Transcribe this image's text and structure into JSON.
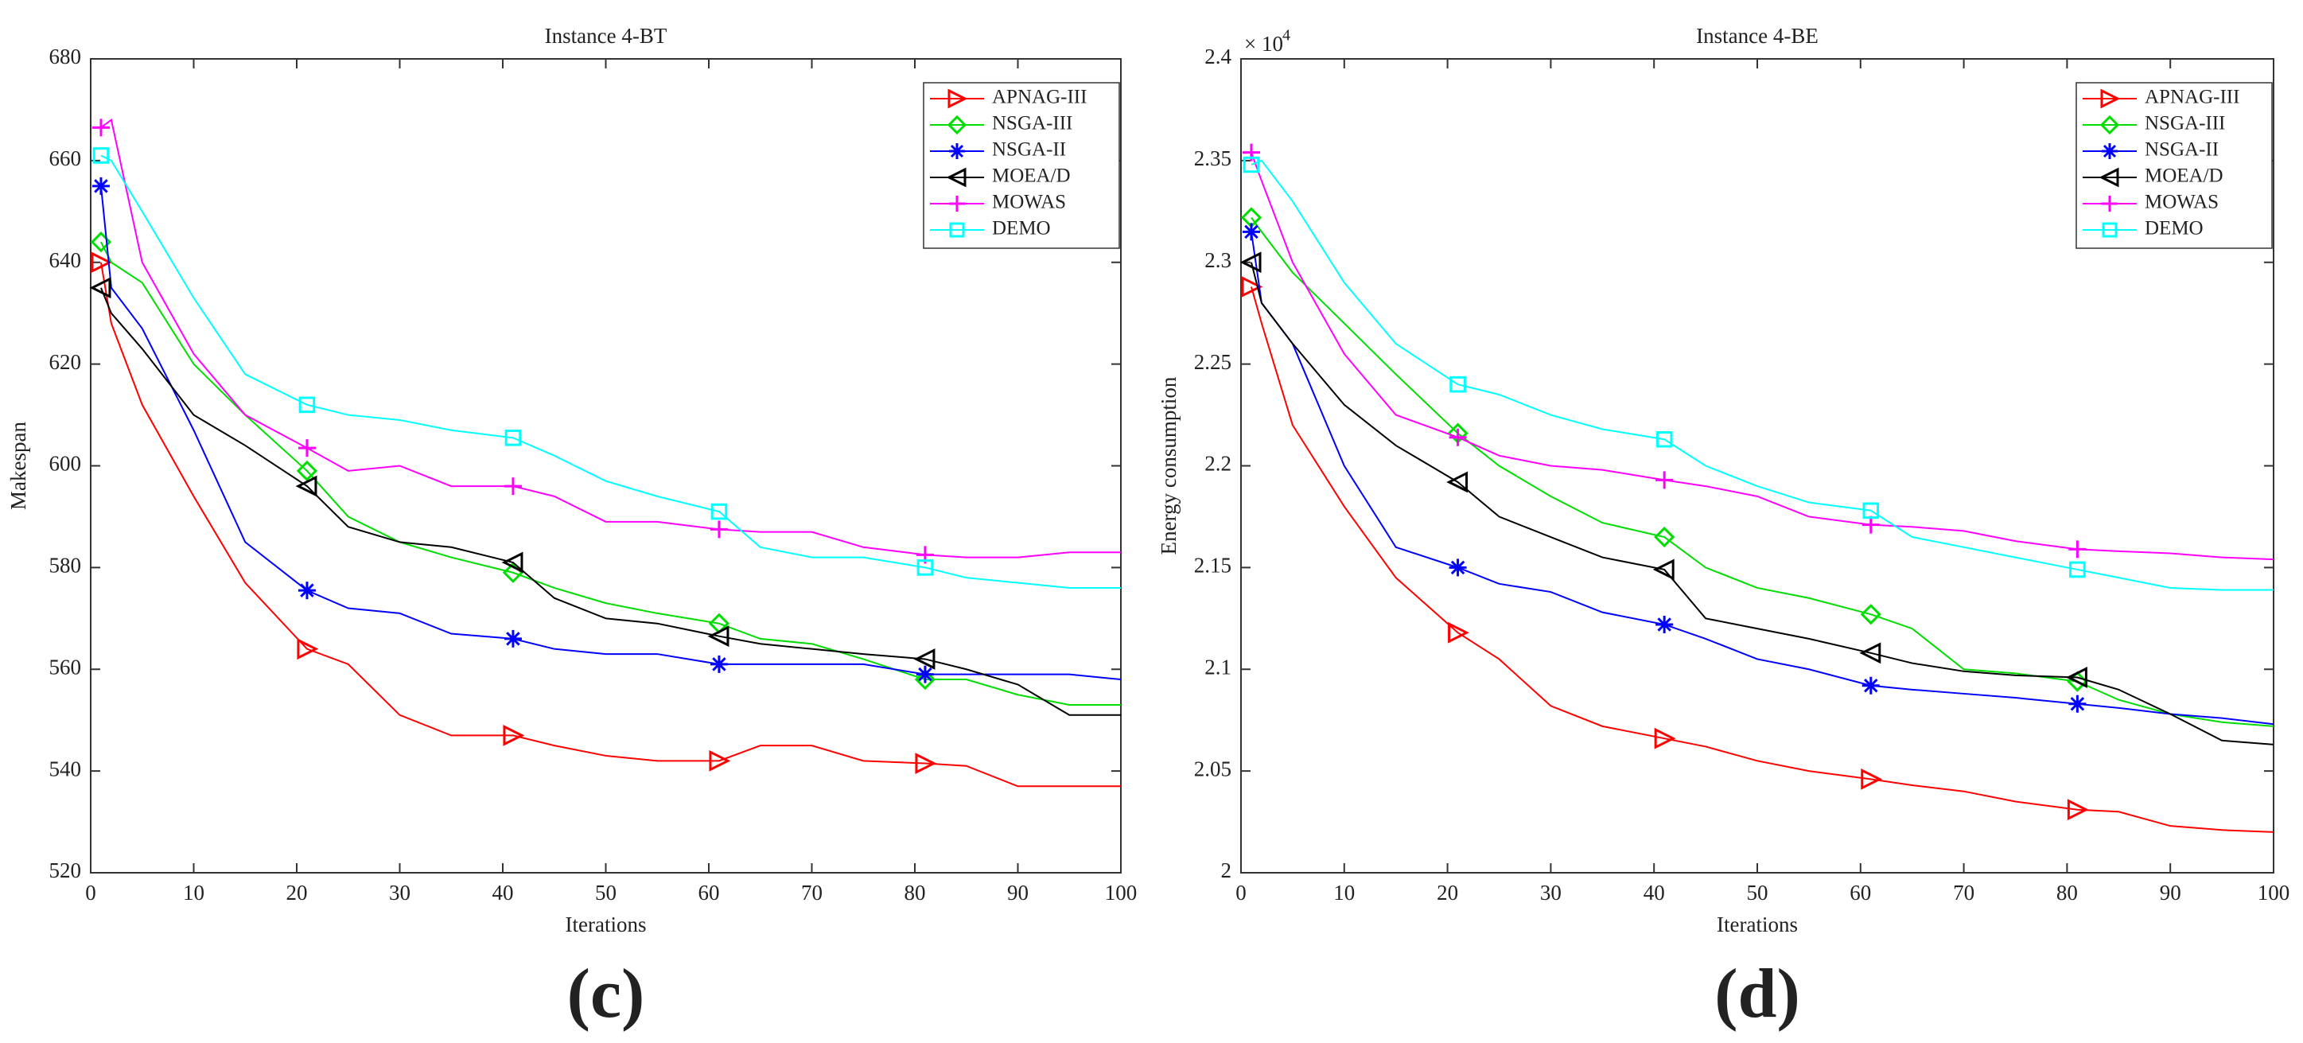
{
  "chart_data": [
    {
      "type": "line",
      "title": "Instance 4-BT",
      "xlabel": "Iterations",
      "ylabel": "Makespan",
      "panel_label": "(c)",
      "x": [
        1,
        2,
        5,
        10,
        15,
        21,
        25,
        30,
        35,
        41,
        45,
        50,
        55,
        61,
        65,
        70,
        75,
        81,
        85,
        90,
        95,
        100
      ],
      "xlim": [
        0,
        100
      ],
      "xticks": [
        0,
        10,
        20,
        30,
        40,
        50,
        60,
        70,
        80,
        90,
        100
      ],
      "ylim": [
        520,
        680
      ],
      "yticks": [
        520,
        540,
        560,
        580,
        600,
        620,
        640,
        660,
        680
      ],
      "legend": "upper right",
      "series": [
        {
          "name": "APNAG-III",
          "color": "#ff0000",
          "marker": "triangle-right",
          "values": [
            640,
            628,
            612,
            594,
            577,
            564,
            561,
            551,
            547,
            547,
            545,
            543,
            542,
            542,
            545,
            545,
            542,
            541.5,
            541,
            537,
            537,
            537
          ]
        },
        {
          "name": "NSGA-III",
          "color": "#00dd00",
          "marker": "diamond",
          "values": [
            644,
            640,
            636,
            620,
            610,
            599,
            590,
            585,
            582,
            579,
            576,
            573,
            571,
            569,
            566,
            565,
            562,
            558,
            558,
            555,
            553,
            553
          ]
        },
        {
          "name": "NSGA-II",
          "color": "#0000ff",
          "marker": "asterisk",
          "values": [
            655,
            635,
            627,
            607,
            585,
            575.5,
            572,
            571,
            567,
            566,
            564,
            563,
            563,
            561,
            561,
            561,
            561,
            559,
            559,
            559,
            559,
            558
          ]
        },
        {
          "name": "MOEA/D",
          "color": "#000000",
          "marker": "triangle-left",
          "values": [
            635,
            630,
            623,
            610,
            604,
            596,
            588,
            585,
            584,
            581,
            574,
            570,
            569,
            566.5,
            565,
            564,
            563,
            562,
            560,
            557,
            551,
            551
          ]
        },
        {
          "name": "MOWAS",
          "color": "#ff00ff",
          "marker": "plus",
          "values": [
            666.5,
            668,
            640,
            622,
            610,
            603.5,
            599,
            600,
            596,
            596,
            594,
            589,
            589,
            587.5,
            587,
            587,
            584,
            582.5,
            582,
            582,
            583,
            583
          ]
        },
        {
          "name": "DEMO",
          "color": "#00ffff",
          "marker": "square",
          "values": [
            661,
            660,
            650,
            633,
            618,
            612,
            610,
            609,
            607,
            605.5,
            602,
            597,
            594,
            591,
            584,
            582,
            582,
            580,
            578,
            577,
            576,
            576
          ]
        }
      ]
    },
    {
      "type": "line",
      "title": "Instance 4-BE",
      "xlabel": "Iterations",
      "ylabel": "Energy consumption",
      "panel_label": "(d)",
      "y_multiplier": "× 10",
      "y_multiplier_exponent": "4",
      "x": [
        1,
        2,
        5,
        10,
        15,
        21,
        25,
        30,
        35,
        41,
        45,
        50,
        55,
        61,
        65,
        70,
        75,
        81,
        85,
        90,
        95,
        100
      ],
      "xlim": [
        0,
        100
      ],
      "xticks": [
        0,
        10,
        20,
        30,
        40,
        50,
        60,
        70,
        80,
        90,
        100
      ],
      "ylim": [
        2,
        2.4
      ],
      "yticks": [
        2,
        2.05,
        2.1,
        2.15,
        2.2,
        2.25,
        2.3,
        2.35,
        2.4
      ],
      "legend": "upper right",
      "series": [
        {
          "name": "APNAG-III",
          "color": "#ff0000",
          "marker": "triangle-right",
          "values": [
            2.288,
            2.27,
            2.22,
            2.18,
            2.145,
            2.118,
            2.105,
            2.082,
            2.072,
            2.066,
            2.062,
            2.055,
            2.05,
            2.046,
            2.043,
            2.04,
            2.035,
            2.031,
            2.03,
            2.023,
            2.021,
            2.02
          ]
        },
        {
          "name": "NSGA-III",
          "color": "#00dd00",
          "marker": "diamond",
          "values": [
            2.322,
            2.315,
            2.295,
            2.27,
            2.245,
            2.216,
            2.2,
            2.185,
            2.172,
            2.165,
            2.15,
            2.14,
            2.135,
            2.127,
            2.12,
            2.1,
            2.098,
            2.094,
            2.085,
            2.078,
            2.074,
            2.072
          ]
        },
        {
          "name": "NSGA-II",
          "color": "#0000ff",
          "marker": "asterisk",
          "values": [
            2.315,
            2.28,
            2.26,
            2.2,
            2.16,
            2.15,
            2.142,
            2.138,
            2.128,
            2.122,
            2.115,
            2.105,
            2.1,
            2.092,
            2.09,
            2.088,
            2.086,
            2.083,
            2.081,
            2.078,
            2.076,
            2.073
          ]
        },
        {
          "name": "MOEA/D",
          "color": "#000000",
          "marker": "triangle-left",
          "values": [
            2.3,
            2.28,
            2.26,
            2.23,
            2.21,
            2.192,
            2.175,
            2.165,
            2.155,
            2.149,
            2.125,
            2.12,
            2.115,
            2.108,
            2.103,
            2.099,
            2.097,
            2.096,
            2.09,
            2.078,
            2.065,
            2.063
          ]
        },
        {
          "name": "MOWAS",
          "color": "#ff00ff",
          "marker": "plus",
          "values": [
            2.354,
            2.34,
            2.3,
            2.255,
            2.225,
            2.214,
            2.205,
            2.2,
            2.198,
            2.193,
            2.19,
            2.185,
            2.175,
            2.171,
            2.17,
            2.168,
            2.163,
            2.159,
            2.158,
            2.157,
            2.155,
            2.154
          ]
        },
        {
          "name": "DEMO",
          "color": "#00ffff",
          "marker": "square",
          "values": [
            2.348,
            2.35,
            2.33,
            2.29,
            2.26,
            2.24,
            2.235,
            2.225,
            2.218,
            2.213,
            2.2,
            2.19,
            2.182,
            2.178,
            2.165,
            2.16,
            2.155,
            2.149,
            2.145,
            2.14,
            2.139,
            2.139
          ]
        }
      ]
    }
  ]
}
